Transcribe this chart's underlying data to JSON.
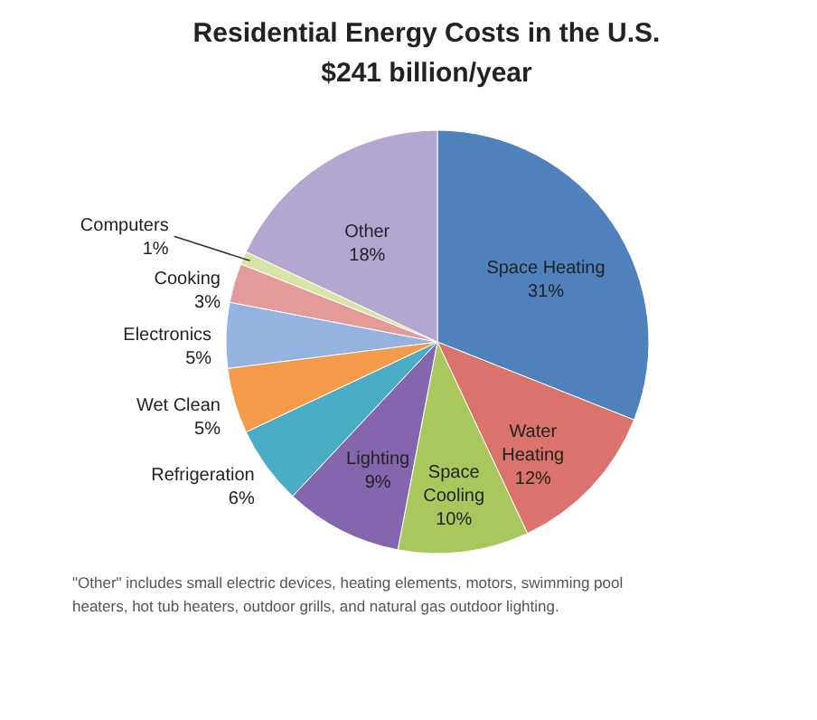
{
  "chart_data": {
    "type": "pie",
    "title": "Residential Energy Costs in the U.S.",
    "subtitle": "$241 billion/year",
    "categories": [
      "Space Heating",
      "Water Heating",
      "Space Cooling",
      "Lighting",
      "Refrigeration",
      "Wet Clean",
      "Electronics",
      "Cooking",
      "Computers",
      "Other"
    ],
    "values": [
      31,
      12,
      10,
      9,
      6,
      5,
      5,
      3,
      1,
      18
    ],
    "value_labels": [
      "31%",
      "12%",
      "10%",
      "9%",
      "6%",
      "5%",
      "5%",
      "3%",
      "1%",
      "18%"
    ],
    "colors": [
      "#4f81bd",
      "#d9736b",
      "#a9c75d",
      "#8466ae",
      "#4bacc6",
      "#f39a4b",
      "#95b3e0",
      "#e59a9a",
      "#d7e4a6",
      "#b3a7d2"
    ],
    "annotations": [
      "\"Other\" includes small electric devices, heating elements, motors, swimming pool heaters, hot tub heaters, outdoor grills, and natural gas outdoor lighting."
    ]
  }
}
